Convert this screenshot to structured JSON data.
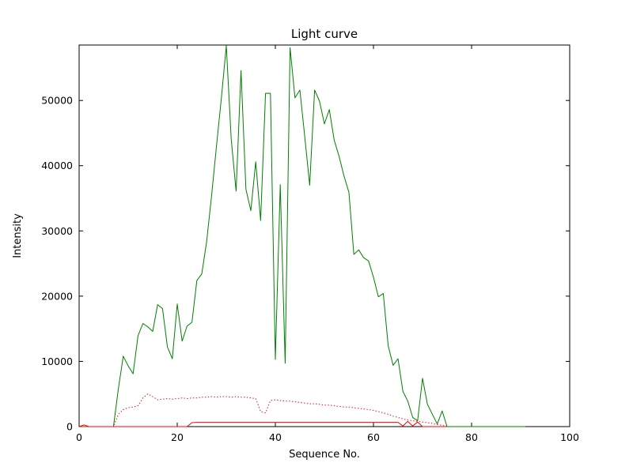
{
  "chart_data": {
    "type": "line",
    "title": "Light curve",
    "xlabel": "Sequence No.",
    "ylabel": "Intensity",
    "xlim": [
      0,
      100
    ],
    "ylim": [
      0,
      58500
    ],
    "xticks": [
      0,
      20,
      40,
      60,
      80,
      100
    ],
    "yticks": [
      0,
      10000,
      20000,
      30000,
      40000,
      50000
    ],
    "grid": false,
    "legend": null,
    "frame_color": "#000000",
    "background_color": "#ffffff",
    "series": [
      {
        "name": "green-solid-light-curve",
        "color": "#008000",
        "style": "solid",
        "width": 1,
        "x": [
          0,
          1,
          2,
          3,
          4,
          5,
          6,
          7,
          8,
          9,
          10,
          11,
          12,
          13,
          14,
          15,
          16,
          17,
          18,
          19,
          20,
          21,
          22,
          23,
          24,
          25,
          26,
          27,
          28,
          29,
          30,
          31,
          32,
          33,
          34,
          35,
          36,
          37,
          38,
          39,
          40,
          41,
          42,
          43,
          44,
          45,
          46,
          47,
          48,
          49,
          50,
          51,
          52,
          53,
          54,
          55,
          56,
          57,
          58,
          59,
          60,
          61,
          62,
          63,
          64,
          65,
          66,
          67,
          68,
          69,
          70,
          71,
          72,
          73,
          74,
          75,
          76,
          77,
          78,
          79,
          80,
          81,
          82,
          83,
          84,
          85,
          86,
          87,
          88,
          89,
          90,
          91
        ],
        "y": [
          0,
          0,
          0,
          0,
          0,
          0,
          0,
          0,
          5800,
          10800,
          9300,
          8100,
          13900,
          15800,
          15300,
          14600,
          18700,
          18100,
          12200,
          10400,
          18800,
          13100,
          15400,
          16000,
          22400,
          23400,
          28400,
          35400,
          43000,
          50400,
          58400,
          44100,
          36100,
          54600,
          36400,
          33100,
          40600,
          31600,
          51100,
          51100,
          10300,
          37100,
          9700,
          58100,
          50400,
          51600,
          44400,
          37000,
          51600,
          49900,
          46400,
          48600,
          43900,
          41400,
          38400,
          35900,
          26400,
          27100,
          25900,
          25400,
          22900,
          19900,
          20400,
          12400,
          9400,
          10400,
          5400,
          3900,
          1400,
          900,
          7400,
          3400,
          1900,
          400,
          2400,
          0,
          0,
          0,
          0,
          0,
          0,
          0,
          0,
          0,
          0,
          0,
          0,
          0,
          0,
          0,
          0,
          0
        ]
      },
      {
        "name": "red-dotted-curve",
        "color": "#ff0000",
        "style": "dotted",
        "width": 1,
        "x": [
          0,
          1,
          2,
          3,
          4,
          5,
          6,
          7,
          8,
          9,
          10,
          11,
          12,
          13,
          14,
          15,
          16,
          17,
          18,
          19,
          20,
          21,
          22,
          23,
          24,
          25,
          26,
          27,
          28,
          29,
          30,
          31,
          32,
          33,
          34,
          35,
          36,
          37,
          38,
          39,
          40,
          41,
          42,
          43,
          44,
          45,
          46,
          47,
          48,
          49,
          50,
          51,
          52,
          53,
          54,
          55,
          56,
          57,
          58,
          59,
          60,
          61,
          62,
          63,
          64,
          65,
          66,
          67,
          68,
          69,
          70,
          71,
          72,
          73,
          74,
          75
        ],
        "y": [
          0,
          0,
          0,
          0,
          0,
          0,
          0,
          0,
          1900,
          2600,
          2900,
          3000,
          3200,
          4400,
          5000,
          4600,
          4100,
          4200,
          4300,
          4200,
          4300,
          4400,
          4300,
          4400,
          4400,
          4500,
          4500,
          4600,
          4500,
          4600,
          4600,
          4500,
          4600,
          4500,
          4500,
          4400,
          4300,
          2300,
          2100,
          4000,
          4100,
          4000,
          3900,
          3900,
          3800,
          3700,
          3600,
          3500,
          3500,
          3400,
          3300,
          3300,
          3200,
          3100,
          3000,
          3000,
          2900,
          2800,
          2700,
          2600,
          2500,
          2300,
          2100,
          1900,
          1600,
          1400,
          1200,
          1000,
          900,
          800,
          700,
          600,
          500,
          300,
          200,
          0
        ]
      },
      {
        "name": "red-solid-baseline",
        "color": "#ff0000",
        "style": "solid",
        "width": 1,
        "x": [
          0,
          1,
          2,
          3,
          4,
          5,
          6,
          7,
          8,
          9,
          10,
          11,
          12,
          13,
          14,
          15,
          16,
          17,
          18,
          19,
          20,
          21,
          22,
          23,
          24,
          25,
          26,
          27,
          28,
          29,
          30,
          31,
          32,
          33,
          34,
          35,
          36,
          37,
          38,
          39,
          40,
          41,
          42,
          43,
          44,
          45,
          46,
          47,
          48,
          49,
          50,
          51,
          52,
          53,
          54,
          55,
          56,
          57,
          58,
          59,
          60,
          61,
          62,
          63,
          64,
          65,
          66,
          67,
          68,
          69,
          70,
          71,
          72,
          73,
          74,
          75
        ],
        "y": [
          0,
          250,
          0,
          0,
          0,
          0,
          0,
          0,
          0,
          0,
          0,
          0,
          0,
          0,
          0,
          0,
          0,
          0,
          0,
          0,
          0,
          0,
          0,
          600,
          650,
          650,
          650,
          650,
          650,
          650,
          650,
          650,
          650,
          650,
          650,
          650,
          650,
          650,
          650,
          650,
          650,
          650,
          650,
          650,
          650,
          650,
          650,
          650,
          650,
          650,
          650,
          650,
          650,
          650,
          650,
          650,
          650,
          650,
          650,
          650,
          650,
          650,
          650,
          650,
          650,
          650,
          100,
          800,
          100,
          700,
          0,
          0,
          0,
          0,
          0,
          0
        ]
      }
    ]
  }
}
